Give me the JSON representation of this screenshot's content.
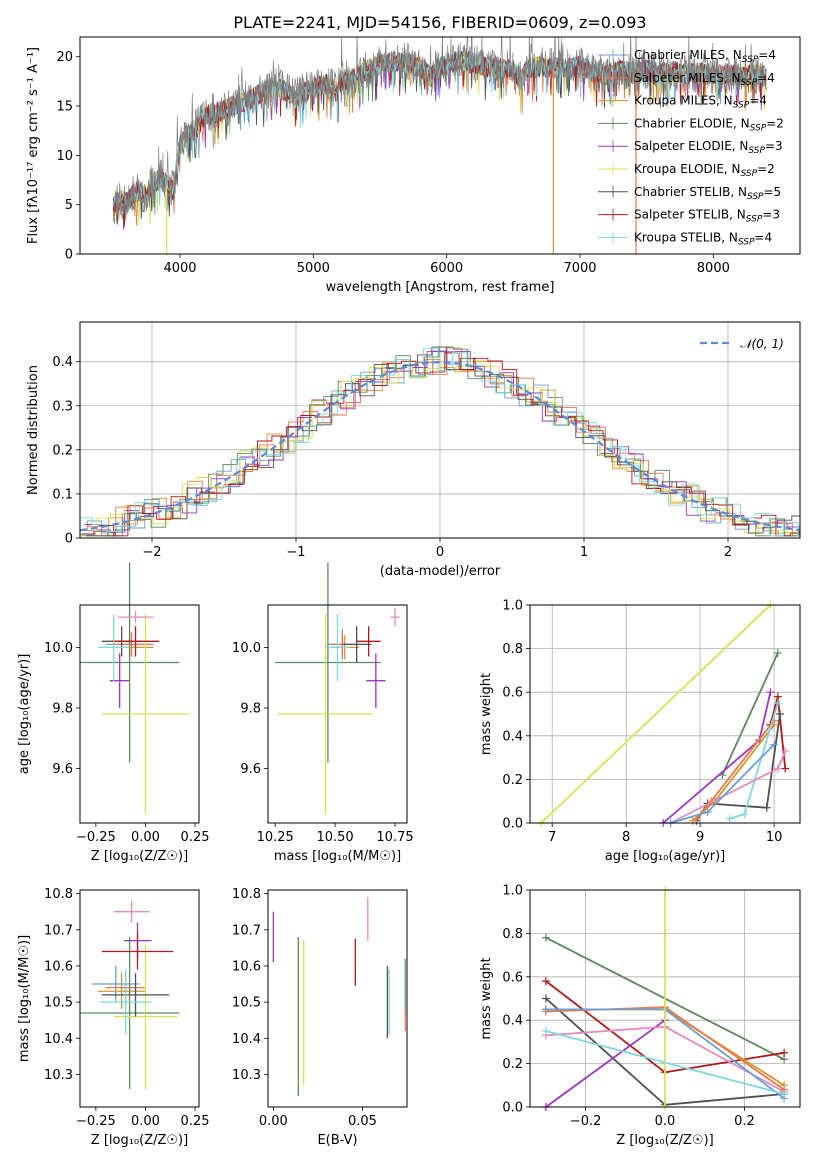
{
  "chart_data": [
    {
      "type": "line",
      "title": "PLATE=2241, MJD=54156, FIBERID=0609, z=0.093",
      "xlabel": "wavelength [Angstrom, rest frame]",
      "ylabel": "Flux [fλ10⁻¹⁷ erg cm⁻² s⁻¹ A⁻¹]",
      "xlim": [
        3250,
        8650
      ],
      "ylim": [
        0,
        22
      ],
      "xticks": [
        4000,
        5000,
        6000,
        7000,
        8000
      ],
      "yticks": [
        0,
        5,
        10,
        15,
        20
      ],
      "data_trace": {
        "name": "data",
        "color": "#808080",
        "x": [
          3500,
          3550,
          3600,
          3650,
          3700,
          3750,
          3800,
          3850,
          3900,
          3950,
          4000,
          4050,
          4100,
          4150,
          4200,
          4300,
          4400,
          4500,
          4600,
          4700,
          4800,
          4862,
          4900,
          5000,
          5100,
          5175,
          5200,
          5300,
          5400,
          5500,
          5600,
          5700,
          5800,
          5890,
          5900,
          6000,
          6100,
          6200,
          6300,
          6400,
          6500,
          6563,
          6600,
          6700,
          6800,
          6900,
          7000,
          7100,
          7200,
          7300,
          7400,
          7500,
          7600,
          7700,
          7800,
          7900,
          8000,
          8100,
          8200,
          8300,
          8400
        ],
        "y": [
          4.8,
          5.5,
          5.2,
          6.0,
          6.5,
          5.8,
          7.2,
          7.8,
          7.0,
          6.5,
          11.0,
          12.0,
          12.6,
          13.2,
          14.0,
          14.5,
          15.0,
          15.5,
          16.2,
          17.0,
          16.5,
          15.8,
          16.2,
          16.8,
          17.2,
          16.4,
          17.5,
          17.8,
          18.6,
          19.2,
          19.5,
          19.4,
          19.0,
          17.8,
          18.8,
          19.2,
          19.6,
          19.4,
          19.0,
          18.8,
          18.6,
          17.6,
          18.8,
          19.0,
          18.9,
          18.8,
          19.0,
          18.5,
          18.2,
          18.6,
          18.4,
          18.7,
          18.3,
          18.5,
          18.2,
          18.4,
          18.1,
          18.3,
          18.0,
          18.2,
          18.0
        ]
      },
      "series": [
        {
          "name": "Chabrier MILES, N$_{SSP}$=4",
          "label_main": "Chabrier MILES, N",
          "label_sub": "SSP",
          "label_end": "=4",
          "color": "#6a9fd0"
        },
        {
          "name": "Salpeter MILES, N$_{SSP}$=4",
          "label_main": "Salpeter MILES, N",
          "label_sub": "SSP",
          "label_end": "=4",
          "color": "#e8784d"
        },
        {
          "name": "Kroupa MILES, N$_{SSP}$=4",
          "label_main": "Kroupa MILES, N",
          "label_sub": "SSP",
          "label_end": "=4",
          "color": "#d6962e"
        },
        {
          "name": "Chabrier ELODIE, N$_{SSP}$=2",
          "label_main": "Chabrier ELODIE, N",
          "label_sub": "SSP",
          "label_end": "=2",
          "color": "#5b8a5b"
        },
        {
          "name": "Salpeter ELODIE, N$_{SSP}$=3",
          "label_main": "Salpeter ELODIE, N",
          "label_sub": "SSP",
          "label_end": "=3",
          "color": "#9b37c0"
        },
        {
          "name": "Kroupa ELODIE, N$_{SSP}$=2",
          "label_main": "Kroupa ELODIE, N",
          "label_sub": "SSP",
          "label_end": "=2",
          "color": "#d8e055"
        },
        {
          "name": "Chabrier STELIB, N$_{SSP}$=5",
          "label_main": "Chabrier STELIB, N",
          "label_sub": "SSP",
          "label_end": "=5",
          "color": "#505050"
        },
        {
          "name": "Salpeter STELIB, N$_{SSP}$=3",
          "label_main": "Salpeter STELIB, N",
          "label_sub": "SSP",
          "label_end": "=3",
          "color": "#b01a1a"
        },
        {
          "name": "Kroupa STELIB, N$_{SSP}$=4",
          "label_main": "Kroupa STELIB, N",
          "label_sub": "SSP",
          "label_end": "=4",
          "color": "#7fd7e0"
        }
      ],
      "spikes": [
        {
          "x": 6800,
          "color": "#d6962e"
        },
        {
          "x": 7420,
          "color": "#e8784d"
        },
        {
          "x": 3900,
          "color": "#d8e055"
        }
      ]
    },
    {
      "type": "line",
      "xlabel": "(data-model)/error",
      "ylabel": "Normed distribution",
      "xlim": [
        -2.5,
        2.5
      ],
      "ylim": [
        0,
        0.49
      ],
      "xticks": [
        -2,
        -1,
        0,
        1,
        2
      ],
      "yticks": [
        0.0,
        0.1,
        0.2,
        0.3,
        0.4
      ],
      "grid": true,
      "legend": "top-right",
      "legend_label": "𝒩(0, 1)",
      "gauss_color": "#5b8bd6"
    },
    {
      "type": "scatter",
      "xlabel": "Z [log₁₀(Z/Z☉)]",
      "ylabel": "age  [log₁₀(age/yr)]",
      "xlim": [
        -0.33,
        0.27
      ],
      "ylim": [
        9.42,
        10.14
      ],
      "xticks": [
        -0.25,
        0.0,
        0.25
      ],
      "xticklabels": [
        "−0.25",
        "0.00",
        "0.25"
      ],
      "yticks": [
        9.6,
        9.8,
        10.0
      ],
      "points": [
        {
          "x": -0.08,
          "y": 10.01,
          "xerr": 0.12,
          "yerr": 0.04,
          "color": "#6a9fd0"
        },
        {
          "x": -0.07,
          "y": 10.01,
          "xerr": 0.1,
          "yerr": 0.04,
          "color": "#e8784d"
        },
        {
          "x": -0.08,
          "y": 10.0,
          "xerr": 0.12,
          "yerr": 0.03,
          "color": "#d6962e"
        },
        {
          "x": -0.08,
          "y": 9.95,
          "xerr": 0.25,
          "yerr": 0.33,
          "color": "#5b8a5b"
        },
        {
          "x": -0.13,
          "y": 9.89,
          "xerr": 0.05,
          "yerr": 0.09,
          "color": "#9b37c0"
        },
        {
          "x": 0.0,
          "y": 9.78,
          "xerr": 0.22,
          "yerr": 0.33,
          "color": "#d8e055"
        },
        {
          "x": -0.12,
          "y": 10.02,
          "xerr": 0.1,
          "yerr": 0.05,
          "color": "#505050"
        },
        {
          "x": -0.05,
          "y": 10.02,
          "xerr": 0.12,
          "yerr": 0.05,
          "color": "#b01a1a"
        },
        {
          "x": -0.16,
          "y": 10.0,
          "xerr": 0.08,
          "yerr": 0.11,
          "color": "#7fd7e0"
        },
        {
          "x": -0.05,
          "y": 10.1,
          "xerr": 0.09,
          "yerr": 0.02,
          "color": "#e58abf"
        }
      ]
    },
    {
      "type": "scatter",
      "xlabel": "mass [log₁₀(M/M☉)]",
      "ylabel": "",
      "xlim": [
        10.22,
        10.8
      ],
      "ylim": [
        9.42,
        10.14
      ],
      "xticks": [
        10.25,
        10.5,
        10.75
      ],
      "xticklabels": [
        "10.25",
        "10.50",
        "10.75"
      ],
      "yticks": [
        9.6,
        9.8,
        10.0
      ],
      "points": [
        {
          "x": 10.53,
          "y": 10.01,
          "xerr": 0.06,
          "yerr": 0.05,
          "color": "#6a9fd0"
        },
        {
          "x": 10.53,
          "y": 10.01,
          "xerr": 0.05,
          "yerr": 0.04,
          "color": "#e8784d"
        },
        {
          "x": 10.54,
          "y": 10.0,
          "xerr": 0.06,
          "yerr": 0.04,
          "color": "#d6962e"
        },
        {
          "x": 10.47,
          "y": 9.95,
          "xerr": 0.22,
          "yerr": 0.33,
          "color": "#5b8a5b"
        },
        {
          "x": 10.67,
          "y": 9.89,
          "xerr": 0.04,
          "yerr": 0.09,
          "color": "#9b37c0"
        },
        {
          "x": 10.46,
          "y": 9.78,
          "xerr": 0.2,
          "yerr": 0.33,
          "color": "#d8e055"
        },
        {
          "x": 10.59,
          "y": 10.01,
          "xerr": 0.06,
          "yerr": 0.06,
          "color": "#505050"
        },
        {
          "x": 10.64,
          "y": 10.02,
          "xerr": 0.05,
          "yerr": 0.05,
          "color": "#b01a1a"
        },
        {
          "x": 10.51,
          "y": 10.0,
          "xerr": 0.05,
          "yerr": 0.11,
          "color": "#7fd7e0"
        },
        {
          "x": 10.75,
          "y": 10.1,
          "xerr": 0.02,
          "yerr": 0.03,
          "color": "#e58abf"
        }
      ]
    },
    {
      "type": "line",
      "xlabel": "age  [log₁₀(age/yr)]",
      "ylabel": "mass weight",
      "xlim": [
        6.7,
        10.35
      ],
      "ylim": [
        0,
        1.0
      ],
      "xticks": [
        7,
        8,
        9,
        10
      ],
      "yticks": [
        0.0,
        0.2,
        0.4,
        0.6,
        0.8,
        1.0
      ],
      "grid": true,
      "series": [
        {
          "color": "#d8e055",
          "x": [
            6.85,
            9.95
          ],
          "y": [
            0.0,
            1.0
          ]
        },
        {
          "color": "#5b8a5b",
          "x": [
            9.3,
            10.05
          ],
          "y": [
            0.22,
            0.78
          ]
        },
        {
          "color": "#9b37c0",
          "x": [
            8.5,
            9.8,
            9.95
          ],
          "y": [
            0.0,
            0.38,
            0.6
          ]
        },
        {
          "color": "#b01a1a",
          "x": [
            9.95,
            10.05,
            10.15
          ],
          "y": [
            0.45,
            0.58,
            0.25
          ]
        },
        {
          "color": "#505050",
          "x": [
            8.95,
            9.1,
            9.9,
            10.08
          ],
          "y": [
            0.01,
            0.09,
            0.07,
            0.5
          ]
        },
        {
          "color": "#d6962e",
          "x": [
            8.9,
            9.2,
            10.0
          ],
          "y": [
            0.01,
            0.1,
            0.45
          ]
        },
        {
          "color": "#e8784d",
          "x": [
            8.95,
            9.15,
            10.0
          ],
          "y": [
            0.02,
            0.1,
            0.47
          ]
        },
        {
          "color": "#7fd7e0",
          "x": [
            9.4,
            9.6,
            10.05
          ],
          "y": [
            0.02,
            0.04,
            0.55
          ]
        },
        {
          "color": "#e58abf",
          "x": [
            8.6,
            10.05,
            10.15
          ],
          "y": [
            0.0,
            0.25,
            0.33
          ]
        },
        {
          "color": "#6a9fd0",
          "x": [
            8.6,
            9.1,
            10.0
          ],
          "y": [
            0.0,
            0.05,
            0.36
          ]
        }
      ]
    },
    {
      "type": "scatter",
      "xlabel": "Z [log₁₀(Z/Z☉)]",
      "ylabel": "mass [log₁₀(M/M☉)]",
      "xlim": [
        -0.33,
        0.27
      ],
      "ylim": [
        10.21,
        10.81
      ],
      "xticks": [
        -0.25,
        0.0,
        0.25
      ],
      "xticklabels": [
        "−0.25",
        "0.00",
        "0.25"
      ],
      "yticks": [
        10.3,
        10.4,
        10.5,
        10.6,
        10.7,
        10.8
      ],
      "points": [
        {
          "x": -0.15,
          "y": 10.55,
          "xerr": 0.12,
          "yerr": 0.05,
          "color": "#6a9fd0"
        },
        {
          "x": -0.1,
          "y": 10.54,
          "xerr": 0.1,
          "yerr": 0.05,
          "color": "#e8784d"
        },
        {
          "x": -0.12,
          "y": 10.53,
          "xerr": 0.12,
          "yerr": 0.05,
          "color": "#d6962e"
        },
        {
          "x": -0.08,
          "y": 10.47,
          "xerr": 0.25,
          "yerr": 0.21,
          "color": "#5b8a5b"
        },
        {
          "x": -0.04,
          "y": 10.67,
          "xerr": 0.07,
          "yerr": 0.05,
          "color": "#9b37c0"
        },
        {
          "x": 0.0,
          "y": 10.46,
          "xerr": 0.16,
          "yerr": 0.2,
          "color": "#d8e055"
        },
        {
          "x": -0.05,
          "y": 10.52,
          "xerr": 0.17,
          "yerr": 0.06,
          "color": "#505050"
        },
        {
          "x": -0.04,
          "y": 10.64,
          "xerr": 0.18,
          "yerr": 0.05,
          "color": "#b01a1a"
        },
        {
          "x": -0.1,
          "y": 10.5,
          "xerr": 0.13,
          "yerr": 0.09,
          "color": "#7fd7e0"
        },
        {
          "x": -0.07,
          "y": 10.75,
          "xerr": 0.09,
          "yerr": 0.03,
          "color": "#e58abf"
        }
      ]
    },
    {
      "type": "scatter",
      "xlabel": "E(B-V)",
      "ylabel": "",
      "xlim": [
        -0.003,
        0.075
      ],
      "ylim": [
        10.21,
        10.81
      ],
      "xticks": [
        0.0,
        0.05
      ],
      "xticklabels": [
        "0.00",
        "0.05"
      ],
      "yticks": [
        10.3,
        10.4,
        10.5,
        10.6,
        10.7,
        10.8
      ],
      "points": [
        {
          "x": 0.0,
          "y": 10.68,
          "yerr": 0.07,
          "color": "#9b37c0"
        },
        {
          "x": 0.014,
          "y": 10.46,
          "yerr": 0.22,
          "color": "#5b8a5b"
        },
        {
          "x": 0.017,
          "y": 10.47,
          "yerr": 0.2,
          "color": "#d8e055"
        },
        {
          "x": 0.046,
          "y": 10.61,
          "yerr": 0.065,
          "color": "#b01a1a"
        },
        {
          "x": 0.053,
          "y": 10.73,
          "yerr": 0.06,
          "color": "#e58abf"
        },
        {
          "x": 0.064,
          "y": 10.5,
          "yerr": 0.1,
          "color": "#505050"
        },
        {
          "x": 0.065,
          "y": 10.5,
          "yerr": 0.09,
          "color": "#7fd7e0"
        },
        {
          "x": 0.074,
          "y": 10.52,
          "yerr": 0.1,
          "color": "#e8784d"
        },
        {
          "x": 0.074,
          "y": 10.55,
          "yerr": 0.07,
          "color": "#6a9fd0"
        }
      ]
    },
    {
      "type": "line",
      "xlabel": "Z [log₁₀(Z/Z☉)]",
      "ylabel": "mass weight",
      "xlim": [
        -0.34,
        0.34
      ],
      "ylim": [
        0,
        1.0
      ],
      "xticks": [
        -0.2,
        0.0,
        0.2
      ],
      "xticklabels": [
        "−0.2",
        "0.0",
        "0.2"
      ],
      "yticks": [
        0.0,
        0.2,
        0.4,
        0.6,
        0.8,
        1.0
      ],
      "grid": true,
      "series": [
        {
          "color": "#5b8a5b",
          "x": [
            -0.3,
            0.3
          ],
          "y": [
            0.78,
            0.22
          ]
        },
        {
          "color": "#b01a1a",
          "x": [
            -0.3,
            0.0,
            0.3
          ],
          "y": [
            0.58,
            0.16,
            0.25
          ]
        },
        {
          "color": "#505050",
          "x": [
            -0.3,
            0.0,
            0.3
          ],
          "y": [
            0.5,
            0.01,
            0.06
          ]
        },
        {
          "color": "#9b37c0",
          "x": [
            -0.3,
            0.0
          ],
          "y": [
            0.0,
            0.4
          ]
        },
        {
          "color": "#e58abf",
          "x": [
            -0.3,
            0.0,
            0.3
          ],
          "y": [
            0.33,
            0.37,
            0.07
          ]
        },
        {
          "color": "#d6962e",
          "x": [
            -0.3,
            0.0,
            0.3
          ],
          "y": [
            0.45,
            0.45,
            0.1
          ]
        },
        {
          "color": "#e8784d",
          "x": [
            -0.3,
            0.0,
            0.3
          ],
          "y": [
            0.44,
            0.46,
            0.08
          ]
        },
        {
          "color": "#6a9fd0",
          "x": [
            -0.3,
            0.0,
            0.3
          ],
          "y": [
            0.45,
            0.45,
            0.04
          ]
        },
        {
          "color": "#7fd7e0",
          "x": [
            -0.3,
            0.3
          ],
          "y": [
            0.35,
            0.06
          ]
        },
        {
          "color": "#d8e055",
          "x": [
            0.0,
            0.0
          ],
          "y": [
            0.0,
            1.0
          ]
        }
      ]
    }
  ]
}
